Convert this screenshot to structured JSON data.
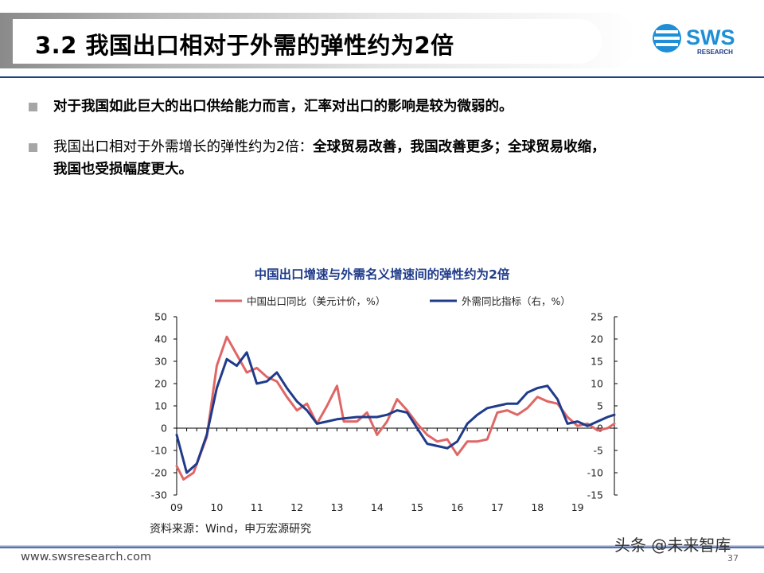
{
  "header": {
    "title": "3.2 我国出口相对于外需的弹性约为2倍",
    "logo_text": "SWS",
    "logo_subtext": "RESEARCH"
  },
  "bullets": [
    {
      "text": "对于我国如此巨大的出口供给能力而言，汇率对出口的影响是较为微弱的。"
    },
    {
      "text_plain": "我国出口相对于外需增长的弹性约为2倍：",
      "text_bold": "全球贸易改善，我国改善更多；全球贸易收缩，",
      "text_bold_line2": "我国也受损幅度更大。"
    }
  ],
  "chart_data": {
    "type": "line",
    "title": "中国出口增速与外需名义增速间的弹性约为2倍",
    "x_tick_labels": [
      "09",
      "10",
      "11",
      "12",
      "13",
      "14",
      "15",
      "16",
      "17",
      "18",
      "19"
    ],
    "x_range": [
      2009.0,
      2019.92
    ],
    "ylim_left": [
      -30,
      50
    ],
    "yticks_left": [
      -30,
      -20,
      -10,
      0,
      10,
      20,
      30,
      40,
      50
    ],
    "ylim_right": [
      -15,
      25
    ],
    "yticks_right": [
      -15,
      -10,
      -5,
      0,
      5,
      10,
      15,
      20,
      25
    ],
    "legend_position": "top",
    "series": [
      {
        "name": "中国出口同比（美元计价，%）",
        "color": "#e06666",
        "axis": "left",
        "points": [
          [
            2009.0,
            -17
          ],
          [
            2009.17,
            -23
          ],
          [
            2009.42,
            -20
          ],
          [
            2009.75,
            -4
          ],
          [
            2010.0,
            28
          ],
          [
            2010.25,
            41
          ],
          [
            2010.5,
            33
          ],
          [
            2010.75,
            25
          ],
          [
            2011.0,
            27
          ],
          [
            2011.25,
            23
          ],
          [
            2011.5,
            21
          ],
          [
            2011.75,
            14
          ],
          [
            2012.0,
            8
          ],
          [
            2012.25,
            11
          ],
          [
            2012.5,
            2
          ],
          [
            2012.75,
            10
          ],
          [
            2013.0,
            19
          ],
          [
            2013.17,
            3
          ],
          [
            2013.5,
            3
          ],
          [
            2013.75,
            7
          ],
          [
            2014.0,
            -3
          ],
          [
            2014.25,
            3
          ],
          [
            2014.5,
            13
          ],
          [
            2014.75,
            8
          ],
          [
            2015.0,
            2
          ],
          [
            2015.25,
            -3
          ],
          [
            2015.5,
            -6
          ],
          [
            2015.75,
            -5
          ],
          [
            2016.0,
            -12
          ],
          [
            2016.25,
            -6
          ],
          [
            2016.5,
            -6
          ],
          [
            2016.75,
            -5
          ],
          [
            2017.0,
            7
          ],
          [
            2017.25,
            8
          ],
          [
            2017.5,
            6
          ],
          [
            2017.75,
            9
          ],
          [
            2018.0,
            14
          ],
          [
            2018.25,
            12
          ],
          [
            2018.5,
            11
          ],
          [
            2018.75,
            5
          ],
          [
            2019.0,
            1
          ],
          [
            2019.25,
            2
          ],
          [
            2019.5,
            -1
          ],
          [
            2019.75,
            0
          ],
          [
            2019.92,
            2
          ]
        ]
      },
      {
        "name": "外需同比指标（右，%）",
        "color": "#1f3b8a",
        "axis": "right",
        "points": [
          [
            2009.0,
            -1.5
          ],
          [
            2009.25,
            -10
          ],
          [
            2009.5,
            -8
          ],
          [
            2009.75,
            -1.5
          ],
          [
            2010.0,
            9
          ],
          [
            2010.25,
            15.5
          ],
          [
            2010.5,
            14
          ],
          [
            2010.75,
            17
          ],
          [
            2011.0,
            10
          ],
          [
            2011.25,
            10.5
          ],
          [
            2011.5,
            12.5
          ],
          [
            2011.75,
            9
          ],
          [
            2012.0,
            6
          ],
          [
            2012.25,
            4
          ],
          [
            2012.5,
            1
          ],
          [
            2012.75,
            1.5
          ],
          [
            2013.0,
            2
          ],
          [
            2013.5,
            2.5
          ],
          [
            2014.0,
            2.5
          ],
          [
            2014.25,
            3
          ],
          [
            2014.5,
            4
          ],
          [
            2014.75,
            3.5
          ],
          [
            2015.0,
            0
          ],
          [
            2015.25,
            -3.5
          ],
          [
            2015.5,
            -4
          ],
          [
            2015.75,
            -4.5
          ],
          [
            2016.0,
            -3
          ],
          [
            2016.25,
            1
          ],
          [
            2016.5,
            3
          ],
          [
            2016.75,
            4.5
          ],
          [
            2017.0,
            5
          ],
          [
            2017.25,
            5.5
          ],
          [
            2017.5,
            5.5
          ],
          [
            2017.75,
            8
          ],
          [
            2018.0,
            9
          ],
          [
            2018.25,
            9.5
          ],
          [
            2018.5,
            6.5
          ],
          [
            2018.75,
            1
          ],
          [
            2019.0,
            1.5
          ],
          [
            2019.25,
            0.5
          ],
          [
            2019.5,
            1.5
          ],
          [
            2019.75,
            2.5
          ],
          [
            2019.92,
            3
          ]
        ]
      }
    ]
  },
  "source_text": "资料来源：Wind，申万宏源研究",
  "footer": {
    "url": "www.swsresearch.com",
    "page_number": "37",
    "watermark": "头条 @未来智库"
  }
}
